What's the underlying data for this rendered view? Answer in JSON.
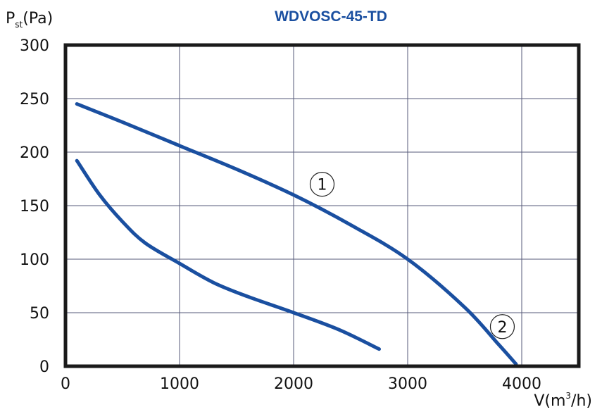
{
  "chart_data": {
    "type": "line",
    "title": "WDVOSC-45-TD",
    "title_color": "#1a4fa0",
    "ylabel": {
      "main": "P",
      "sub": "st",
      "unit": "(Pa)"
    },
    "xlabel": {
      "main": "V(m",
      "sup": "3",
      "unit": "/h)"
    },
    "xlim": [
      0,
      4500
    ],
    "ylim": [
      0,
      300
    ],
    "x_ticks": [
      0,
      1000,
      2000,
      3000,
      4000
    ],
    "x_tick_labels": [
      "0",
      "1000",
      "2000",
      "3000",
      "4000"
    ],
    "y_ticks": [
      0,
      50,
      100,
      150,
      200,
      250,
      300
    ],
    "y_tick_labels": [
      "0",
      "50",
      "100",
      "150",
      "200",
      "250",
      "300"
    ],
    "grid": true,
    "line_color": "#1a4fa0",
    "series": [
      {
        "name": "1",
        "label_at": [
          2250,
          170
        ],
        "x": [
          100,
          500,
          1000,
          1500,
          2000,
          2500,
          3000,
          3500,
          3800,
          3950
        ],
        "y": [
          245,
          228,
          206,
          184,
          160,
          132,
          100,
          55,
          20,
          2
        ]
      },
      {
        "name": "2",
        "label_at": [
          3830,
          37
        ],
        "x": [
          100,
          300,
          500,
          700,
          1000,
          1300,
          1600,
          2000,
          2400,
          2750
        ],
        "y": [
          192,
          160,
          135,
          115,
          96,
          78,
          65,
          50,
          34,
          16
        ]
      }
    ]
  }
}
